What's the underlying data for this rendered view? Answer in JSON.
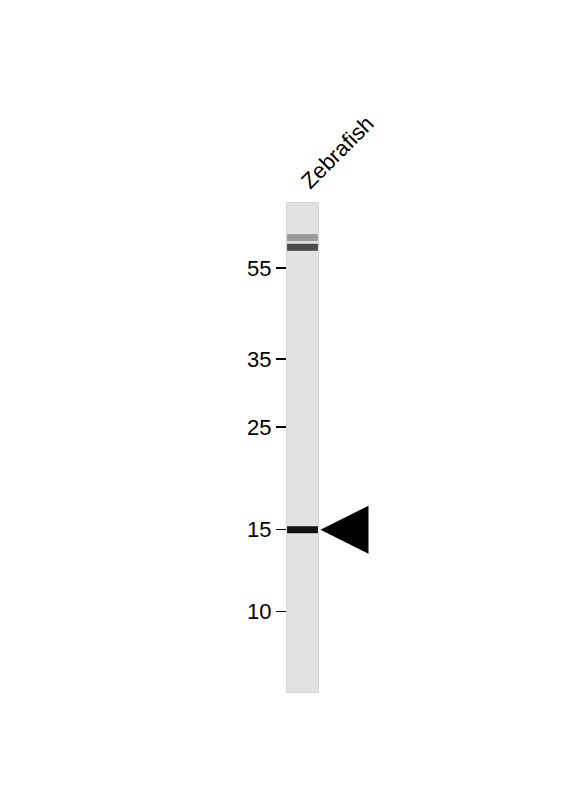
{
  "chart_data": {
    "type": "blot",
    "x": [
      "Zebrafish",
      "Zebrafish",
      "Zebrafish"
    ],
    "values": [
      64,
      61,
      15
    ],
    "colors": [
      "#9a9a9a",
      "#4a4a4a",
      "#111111"
    ],
    "ylim": [
      6.7,
      76
    ],
    "yticks": [
      10,
      15,
      25,
      35,
      55
    ],
    "log": "y",
    "grid": false
  }
}
